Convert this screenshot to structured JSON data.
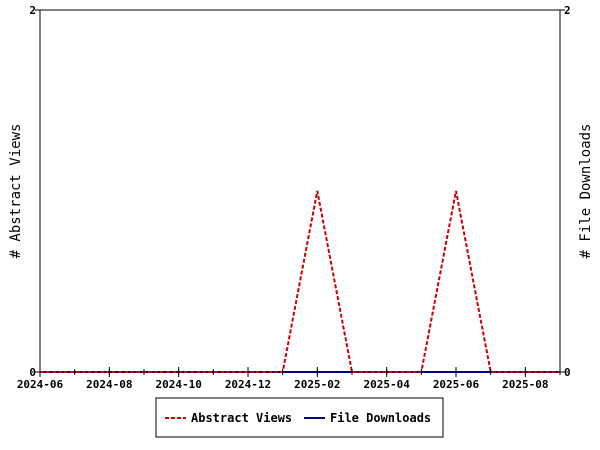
{
  "chart_data": {
    "type": "line",
    "title": "",
    "xlabel": "",
    "ylabel_left": "# Abstract Views",
    "ylabel_right": "# File Downloads",
    "x_tick_labels": [
      "2024-06",
      "2024-08",
      "2024-10",
      "2024-12",
      "2025-02",
      "2025-04",
      "2025-06",
      "2025-08"
    ],
    "x": [
      "2024-06",
      "2024-07",
      "2024-08",
      "2024-09",
      "2024-10",
      "2024-11",
      "2024-12",
      "2025-01",
      "2025-02",
      "2025-03",
      "2025-04",
      "2025-05",
      "2025-06",
      "2025-07",
      "2025-08",
      "2025-09"
    ],
    "xlim": [
      "2024-06",
      "2025-09"
    ],
    "ylim_left": [
      0,
      2
    ],
    "ylim_right": [
      0,
      2
    ],
    "y_tick_labels_left": [
      "0",
      "2"
    ],
    "y_tick_labels_right": [
      "0",
      "2"
    ],
    "series": [
      {
        "name": "Abstract Views",
        "axis": "left",
        "color": "#cc0000",
        "style": "dashed",
        "values": [
          0,
          0,
          0,
          0,
          0,
          0,
          0,
          0,
          1,
          0,
          0,
          0,
          1,
          0,
          0,
          0
        ]
      },
      {
        "name": "File Downloads",
        "axis": "right",
        "color": "#00008b",
        "style": "solid",
        "values": [
          0,
          0,
          0,
          0,
          0,
          0,
          0,
          0,
          0,
          0,
          0,
          0,
          0,
          0,
          0,
          0
        ]
      }
    ],
    "legend_position": "bottom-center",
    "grid": false
  }
}
